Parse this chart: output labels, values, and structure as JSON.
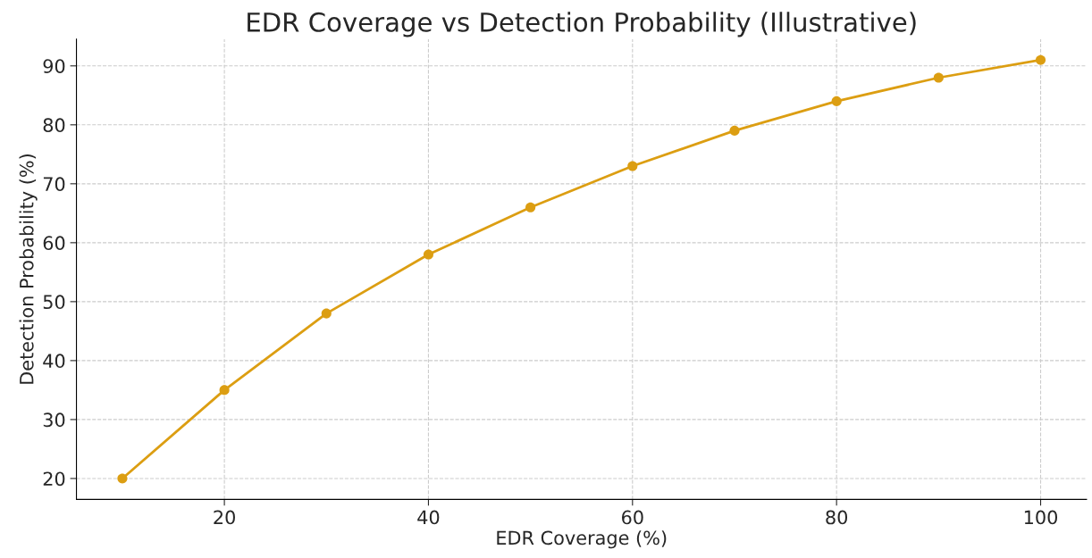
{
  "chart_data": {
    "type": "line",
    "title": "EDR Coverage vs Detection Probability (Illustrative)",
    "xlabel": "EDR Coverage (%)",
    "ylabel": "Detection Probability (%)",
    "x": [
      10,
      20,
      30,
      40,
      50,
      60,
      70,
      80,
      90,
      100
    ],
    "series": [
      {
        "color": "#dc9e12",
        "values": [
          20,
          35,
          48,
          58,
          66,
          73,
          79,
          84,
          88,
          91
        ]
      }
    ],
    "xlim": [
      5.5,
      104.5
    ],
    "xticks": [
      20,
      40,
      60,
      80,
      100
    ],
    "ylim": [
      16.45,
      94.55
    ],
    "yticks": [
      20,
      30,
      40,
      50,
      60,
      70,
      80,
      90
    ],
    "grid": true,
    "marker": "circle",
    "line_style": "solid"
  }
}
